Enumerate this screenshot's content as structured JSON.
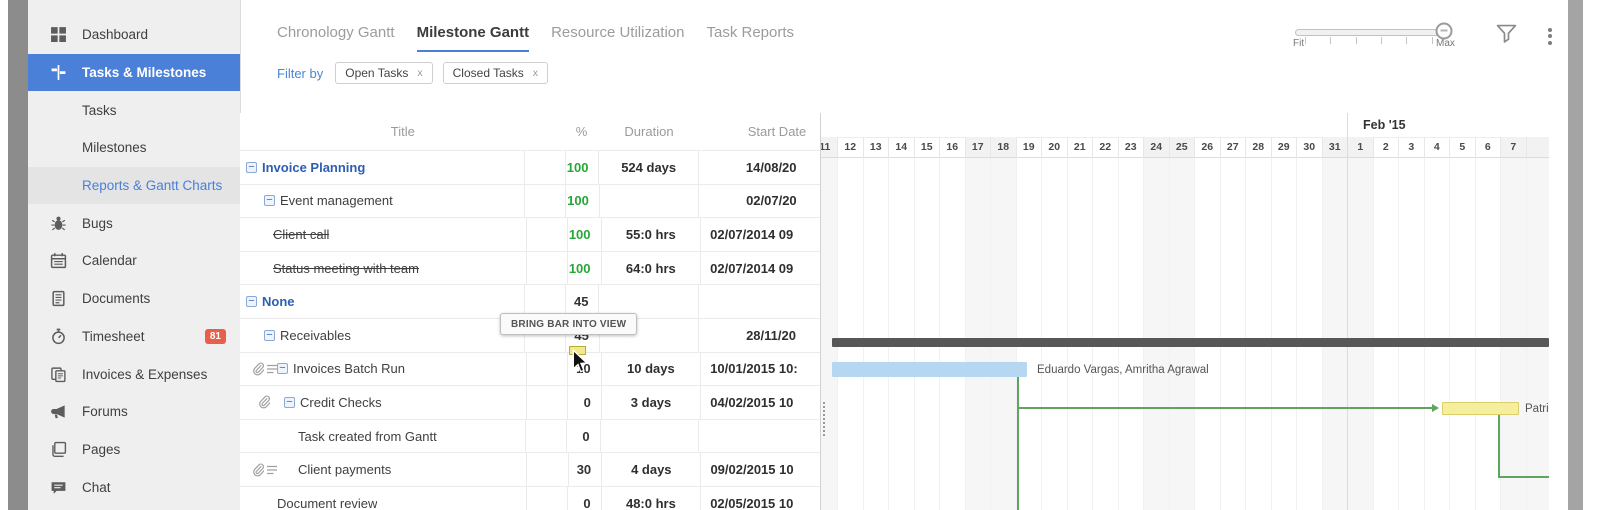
{
  "sidebar": {
    "items": [
      {
        "label": "Dashboard",
        "icon": "dashboard-grid-icon",
        "type": "item"
      },
      {
        "label": "Tasks & Milestones",
        "icon": "milestones-sign-icon",
        "type": "item",
        "state": "active"
      },
      {
        "label": "Tasks",
        "type": "subitem"
      },
      {
        "label": "Milestones",
        "type": "subitem"
      },
      {
        "label": "Reports & Gantt Charts",
        "type": "subitem",
        "state": "selected"
      },
      {
        "label": "Bugs",
        "icon": "bug-icon",
        "type": "item"
      },
      {
        "label": "Calendar",
        "icon": "calendar-icon",
        "type": "item"
      },
      {
        "label": "Documents",
        "icon": "documents-icon",
        "type": "item"
      },
      {
        "label": "Timesheet",
        "icon": "stopwatch-icon",
        "type": "item",
        "badge": "81"
      },
      {
        "label": "Invoices & Expenses",
        "icon": "invoices-icon",
        "type": "item"
      },
      {
        "label": "Forums",
        "icon": "megaphone-icon",
        "type": "item"
      },
      {
        "label": "Pages",
        "icon": "pages-icon",
        "type": "item"
      },
      {
        "label": "Chat",
        "icon": "chat-icon",
        "type": "item"
      }
    ]
  },
  "tabs": [
    {
      "label": "Chronology Gantt",
      "active": false
    },
    {
      "label": "Milestone Gantt",
      "active": true
    },
    {
      "label": "Resource Utilization",
      "active": false
    },
    {
      "label": "Task Reports",
      "active": false
    }
  ],
  "filterbar": {
    "label": "Filter by",
    "chips": [
      {
        "label": "Open Tasks",
        "close": "x"
      },
      {
        "label": "Closed Tasks",
        "close": "x"
      }
    ]
  },
  "zoom_control": {
    "min_label": "Fit",
    "max_label": "Max"
  },
  "table": {
    "headers": {
      "title": "Title",
      "pct": "%",
      "duration": "Duration",
      "start": "Start Date"
    },
    "rows": [
      {
        "title": "Invoice Planning",
        "pct": "100",
        "duration": "524 days",
        "start": "14/08/20",
        "level": 0,
        "collapse": true,
        "group": true
      },
      {
        "title": "Event management",
        "pct": "100",
        "duration": "",
        "start": "02/07/20",
        "level": 1,
        "collapse": true
      },
      {
        "title": "Client call",
        "pct": "100",
        "duration": "55:0 hrs",
        "start": "02/07/2014 09",
        "level": 1,
        "strike": true
      },
      {
        "title": "Status meeting with team",
        "pct": "100",
        "duration": "64:0 hrs",
        "start": "02/07/2014 09",
        "level": 1,
        "strike": true
      },
      {
        "title": "None",
        "pct": "45",
        "duration": "",
        "start": "",
        "level": 0,
        "collapse": true,
        "group": true
      },
      {
        "title": "Receivables",
        "pct": "45",
        "duration": "",
        "start": "28/11/20",
        "level": 1,
        "collapse": true
      },
      {
        "title": "Invoices Batch Run",
        "pct": "10",
        "duration": "10 days",
        "start": "10/01/2015 10:",
        "level": 2,
        "collapse": true,
        "icons": [
          "paperclip-icon",
          "list-icon"
        ]
      },
      {
        "title": "Credit Checks",
        "pct": "0",
        "duration": "3 days",
        "start": "04/02/2015 10",
        "level": 3,
        "collapse": true,
        "icons": [
          "paperclip-icon"
        ]
      },
      {
        "title": "Task created from Gantt",
        "pct": "0",
        "duration": "",
        "start": "",
        "level": 4
      },
      {
        "title": "Client payments",
        "pct": "30",
        "duration": "4 days",
        "start": "09/02/2015 10",
        "level": 4,
        "icons": [
          "paperclip-icon",
          "list-icon"
        ]
      },
      {
        "title": "Document review",
        "pct": "0",
        "duration": "48:0 hrs",
        "start": "02/05/2015 10",
        "level": 2
      }
    ]
  },
  "tooltip": {
    "text": "BRING BAR INTO VIEW"
  },
  "gantt": {
    "month_label": "Feb '15",
    "days": [
      {
        "label": "11",
        "we": true
      },
      {
        "label": "12"
      },
      {
        "label": "13"
      },
      {
        "label": "14"
      },
      {
        "label": "15"
      },
      {
        "label": "16"
      },
      {
        "label": "17",
        "we": true
      },
      {
        "label": "18",
        "we": true
      },
      {
        "label": "19"
      },
      {
        "label": "20"
      },
      {
        "label": "21"
      },
      {
        "label": "22"
      },
      {
        "label": "23"
      },
      {
        "label": "24",
        "we": true
      },
      {
        "label": "25",
        "we": true
      },
      {
        "label": "26"
      },
      {
        "label": "27"
      },
      {
        "label": "28"
      },
      {
        "label": "29"
      },
      {
        "label": "30"
      },
      {
        "label": "31",
        "we": true
      },
      {
        "label": "1",
        "we": true,
        "month_start": true
      },
      {
        "label": "2"
      },
      {
        "label": "3"
      },
      {
        "label": "4"
      },
      {
        "label": "5"
      },
      {
        "label": "6"
      },
      {
        "label": "7",
        "we": true
      },
      {
        "label": "",
        "we": true
      }
    ],
    "assignee_label": "Eduardo Vargas, Amritha Agrawal",
    "dependency_label": "Patric"
  },
  "colors": {
    "accent_blue": "#4a7fd6",
    "done_green": "#27a737",
    "badge_red": "#e8604c",
    "bar_blue": "#b6d7f2",
    "bar_yellow": "#f5ee9c",
    "bar_dark": "#575757",
    "dependency_green": "#5fa55f"
  }
}
